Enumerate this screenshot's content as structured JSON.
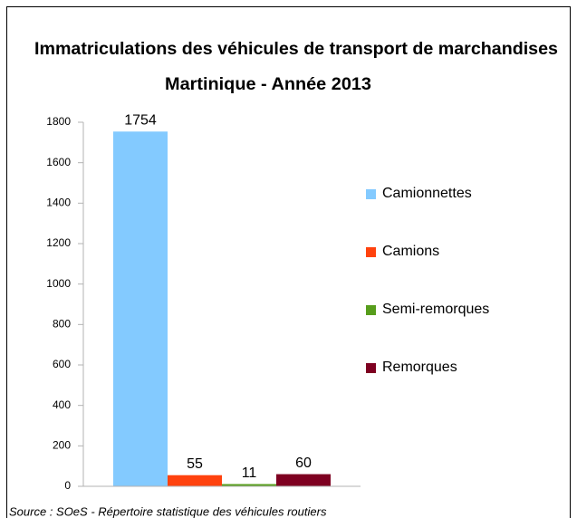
{
  "chart_data": {
    "type": "bar",
    "title": "Immatriculations des véhicules de transport de marchandises",
    "subtitle": "Martinique - Année 2013",
    "categories": [
      null
    ],
    "series": [
      {
        "name": "Camionnettes",
        "color": "#83caff",
        "values": [
          1754
        ]
      },
      {
        "name": "Camions",
        "color": "#ff420e",
        "values": [
          55
        ]
      },
      {
        "name": "Semi-remorques",
        "color": "#579d1c",
        "values": [
          11
        ]
      },
      {
        "name": "Remorques",
        "color": "#7e0021",
        "values": [
          60
        ]
      }
    ],
    "ylim": [
      0,
      1800
    ],
    "yticks": [
      0,
      200,
      400,
      600,
      800,
      1000,
      1200,
      1400,
      1600,
      1800
    ],
    "grid": false,
    "legend": "right",
    "source": "Source : SOeS - Répertoire statistique des véhicules routiers"
  }
}
